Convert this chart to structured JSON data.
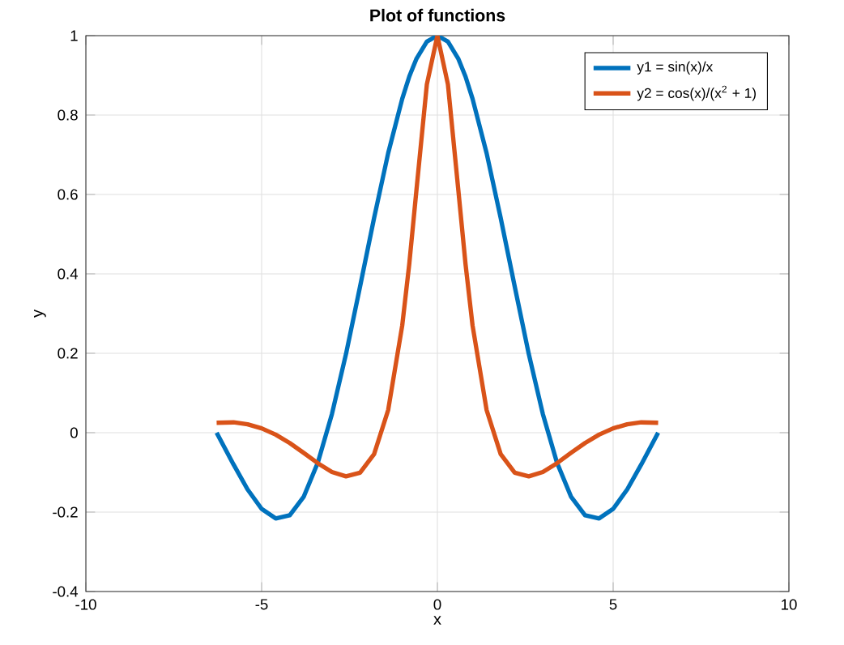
{
  "chart_data": {
    "type": "line",
    "title": "Plot of functions",
    "xlabel": "x",
    "ylabel": "y",
    "x": [
      -6.28,
      -5.8,
      -5.4,
      -5.0,
      -4.6,
      -4.2,
      -3.8,
      -3.4,
      -3.0,
      -2.6,
      -2.2,
      -1.8,
      -1.4,
      -1.0,
      -0.8,
      -0.6,
      -0.3,
      0,
      0.3,
      0.6,
      0.8,
      1.0,
      1.4,
      1.8,
      2.2,
      2.6,
      3.0,
      3.4,
      3.8,
      4.2,
      4.6,
      5.0,
      5.4,
      5.8,
      6.28
    ],
    "series": [
      {
        "name": "y1 = sin(x)/x",
        "color": "#0072bd",
        "values": [
          0.0,
          -0.08,
          -0.143,
          -0.192,
          -0.216,
          -0.208,
          -0.161,
          -0.075,
          0.047,
          0.198,
          0.368,
          0.541,
          0.704,
          0.841,
          0.897,
          0.941,
          0.985,
          1.0,
          0.985,
          0.941,
          0.897,
          0.841,
          0.704,
          0.541,
          0.368,
          0.198,
          0.047,
          -0.075,
          -0.161,
          -0.208,
          -0.216,
          -0.192,
          -0.143,
          -0.08,
          0.0
        ]
      },
      {
        "name": "y2 = cos(x)/(x$^{2}$ + 1)",
        "color": "#d95319",
        "values": [
          0.025,
          0.026,
          0.021,
          0.011,
          -0.005,
          -0.026,
          -0.051,
          -0.077,
          -0.099,
          -0.11,
          -0.101,
          -0.054,
          0.057,
          0.27,
          0.425,
          0.607,
          0.877,
          1.0,
          0.877,
          0.607,
          0.425,
          0.27,
          0.057,
          -0.054,
          -0.101,
          -0.11,
          -0.099,
          -0.077,
          -0.051,
          -0.026,
          -0.005,
          0.011,
          0.021,
          0.026,
          0.025
        ]
      }
    ],
    "xlim": [
      -10,
      10
    ],
    "xticks": [
      -10,
      -5,
      0,
      5,
      10
    ],
    "ylim": [
      -0.4,
      1
    ],
    "yticks": [
      -0.4,
      -0.2,
      0,
      0.2,
      0.4,
      0.6,
      0.8,
      1
    ],
    "grid": true,
    "legend": "top right",
    "marker": "none",
    "line_style": "solid"
  }
}
